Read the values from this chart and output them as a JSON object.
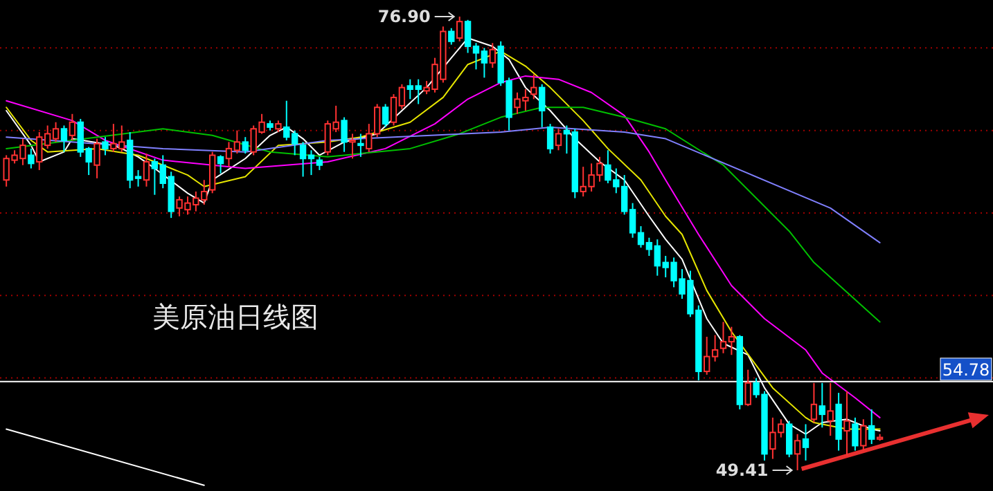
{
  "chart_data": {
    "type": "candlestick",
    "title": "美原油日线图",
    "grid": "y",
    "tick_labels": false,
    "categories": [
      null,
      null,
      null,
      null,
      null,
      null,
      null,
      null,
      null,
      null,
      null,
      null,
      null,
      null,
      null,
      null,
      null,
      null,
      null,
      null,
      null,
      null,
      null,
      null,
      null,
      null,
      null,
      null,
      null,
      null,
      null,
      null,
      null,
      null,
      null,
      null,
      null,
      null,
      null,
      null,
      null,
      null,
      null,
      null,
      null,
      null,
      null,
      null,
      null,
      null,
      null,
      null,
      null,
      null,
      null,
      null,
      null,
      null,
      null,
      null,
      null,
      null,
      null,
      null,
      null,
      null,
      null,
      null,
      null,
      null,
      null,
      null,
      null,
      null,
      null,
      null,
      null,
      null,
      null,
      null,
      null,
      null,
      null,
      null,
      null,
      null,
      null,
      null,
      null,
      null,
      null,
      null,
      null,
      null,
      null,
      null,
      null,
      null,
      null,
      null,
      null,
      null,
      null,
      null,
      null,
      null,
      null
    ],
    "ohlc": [
      [
        67.0,
        68.5,
        66.6,
        68.3
      ],
      [
        68.2,
        68.8,
        68.0,
        68.5
      ],
      [
        68.3,
        69.5,
        67.9,
        69.1
      ],
      [
        68.5,
        68.9,
        67.7,
        68.0
      ],
      [
        68.1,
        69.9,
        67.6,
        69.6
      ],
      [
        69.1,
        70.3,
        68.9,
        69.8
      ],
      [
        69.5,
        70.5,
        69.3,
        70.1
      ],
      [
        70.1,
        70.3,
        68.7,
        69.4
      ],
      [
        69.7,
        71.0,
        69.4,
        70.5
      ],
      [
        70.5,
        70.7,
        68.4,
        68.7
      ],
      [
        68.9,
        69.0,
        67.3,
        68.1
      ],
      [
        67.9,
        69.5,
        67.1,
        69.2
      ],
      [
        69.3,
        69.6,
        68.5,
        68.9
      ],
      [
        68.9,
        70.4,
        68.7,
        69.2
      ],
      [
        68.9,
        70.3,
        68.7,
        69.3
      ],
      [
        69.4,
        69.9,
        66.5,
        67.0
      ],
      [
        67.2,
        67.6,
        66.6,
        67.1
      ],
      [
        67.0,
        68.6,
        66.6,
        68.1
      ],
      [
        68.1,
        68.3,
        66.1,
        67.7
      ],
      [
        67.9,
        68.5,
        66.5,
        66.8
      ],
      [
        67.2,
        67.5,
        64.7,
        65.1
      ],
      [
        65.3,
        66.0,
        64.8,
        65.8
      ],
      [
        65.2,
        66.0,
        64.9,
        65.6
      ],
      [
        65.5,
        66.3,
        65.1,
        65.9
      ],
      [
        65.8,
        67.0,
        65.5,
        66.3
      ],
      [
        66.4,
        68.7,
        66.2,
        68.5
      ],
      [
        68.4,
        68.5,
        67.4,
        68.0
      ],
      [
        68.3,
        69.3,
        67.8,
        68.9
      ],
      [
        68.8,
        70.0,
        68.6,
        69.3
      ],
      [
        69.3,
        69.6,
        68.6,
        68.8
      ],
      [
        68.7,
        70.3,
        68.5,
        70.1
      ],
      [
        69.9,
        71.0,
        69.8,
        70.5
      ],
      [
        70.4,
        70.6,
        70.0,
        70.2
      ],
      [
        70.1,
        70.6,
        69.9,
        70.4
      ],
      [
        70.2,
        71.8,
        69.4,
        69.6
      ],
      [
        69.8,
        70.0,
        68.5,
        69.2
      ],
      [
        69.1,
        69.3,
        67.2,
        68.3
      ],
      [
        68.5,
        68.8,
        67.3,
        68.3
      ],
      [
        68.2,
        68.4,
        67.6,
        67.9
      ],
      [
        68.7,
        70.6,
        68.5,
        70.4
      ],
      [
        70.1,
        71.5,
        69.9,
        70.5
      ],
      [
        70.6,
        70.8,
        68.7,
        69.3
      ],
      [
        69.3,
        69.8,
        68.3,
        69.4
      ],
      [
        69.2,
        69.8,
        68.4,
        69.1
      ],
      [
        68.9,
        70.4,
        68.7,
        69.8
      ],
      [
        69.8,
        71.6,
        69.6,
        71.4
      ],
      [
        71.4,
        71.6,
        70.2,
        70.4
      ],
      [
        70.5,
        72.2,
        70.3,
        72.0
      ],
      [
        71.5,
        72.8,
        71.3,
        72.6
      ],
      [
        72.7,
        73.1,
        71.9,
        72.5
      ],
      [
        72.7,
        73.1,
        71.6,
        72.5
      ],
      [
        72.4,
        73.0,
        72.2,
        72.6
      ],
      [
        72.5,
        74.4,
        72.3,
        74.0
      ],
      [
        73.1,
        76.3,
        72.9,
        76.0
      ],
      [
        76.0,
        76.2,
        75.2,
        75.4
      ],
      [
        75.6,
        76.9,
        75.4,
        76.6
      ],
      [
        76.6,
        76.7,
        74.7,
        75.1
      ],
      [
        75.1,
        75.3,
        73.7,
        74.7
      ],
      [
        74.8,
        75.0,
        73.2,
        74.1
      ],
      [
        74.1,
        75.3,
        73.8,
        74.9
      ],
      [
        75.1,
        75.4,
        72.7,
        72.9
      ],
      [
        73.0,
        73.2,
        70.0,
        70.8
      ],
      [
        71.4,
        72.3,
        71.0,
        71.9
      ],
      [
        71.8,
        72.5,
        71.2,
        72.0
      ],
      [
        72.2,
        73.4,
        71.9,
        72.6
      ],
      [
        72.6,
        72.8,
        70.2,
        71.2
      ],
      [
        70.2,
        70.4,
        68.6,
        68.9
      ],
      [
        69.1,
        70.1,
        68.8,
        69.8
      ],
      [
        70.0,
        70.3,
        68.6,
        69.8
      ],
      [
        69.9,
        70.1,
        65.9,
        66.3
      ],
      [
        66.3,
        67.8,
        66.0,
        66.6
      ],
      [
        66.6,
        68.0,
        66.3,
        67.3
      ],
      [
        67.3,
        68.4,
        66.9,
        68.0
      ],
      [
        67.9,
        68.8,
        66.8,
        67.0
      ],
      [
        67.0,
        67.7,
        66.2,
        66.6
      ],
      [
        66.6,
        67.3,
        64.9,
        65.1
      ],
      [
        65.2,
        65.6,
        63.5,
        63.8
      ],
      [
        63.8,
        64.2,
        62.9,
        63.1
      ],
      [
        63.2,
        63.5,
        62.4,
        62.8
      ],
      [
        63.0,
        63.4,
        61.2,
        61.8
      ],
      [
        62.0,
        62.4,
        61.1,
        61.7
      ],
      [
        62.0,
        62.3,
        60.5,
        60.9
      ],
      [
        61.0,
        61.6,
        59.8,
        60.1
      ],
      [
        60.9,
        61.5,
        58.7,
        58.9
      ],
      [
        59.1,
        59.4,
        54.86,
        55.4
      ],
      [
        55.4,
        57.5,
        55.2,
        56.3
      ],
      [
        56.3,
        57.6,
        56.0,
        56.7
      ],
      [
        56.8,
        58.4,
        56.5,
        57.2
      ],
      [
        57.2,
        58.1,
        56.4,
        57.5
      ],
      [
        57.5,
        57.6,
        53.1,
        53.4
      ],
      [
        53.4,
        55.5,
        53.3,
        54.7
      ],
      [
        54.7,
        55.0,
        53.8,
        54.0
      ],
      [
        54.0,
        54.2,
        50.0,
        50.4
      ],
      [
        50.7,
        52.6,
        50.1,
        51.7
      ],
      [
        51.7,
        52.5,
        51.4,
        52.2
      ],
      [
        52.2,
        52.4,
        50.2,
        50.4
      ],
      [
        50.4,
        51.6,
        49.41,
        51.2
      ],
      [
        51.3,
        52.2,
        50.0,
        50.8
      ],
      [
        52.5,
        54.7,
        52.3,
        53.4
      ],
      [
        53.3,
        54.7,
        52.0,
        52.8
      ],
      [
        52.4,
        54.7,
        51.5,
        53.0
      ],
      [
        53.4,
        54.1,
        50.6,
        51.3
      ],
      [
        51.8,
        54.2,
        50.3,
        52.4
      ],
      [
        52.2,
        52.6,
        50.6,
        50.9
      ],
      [
        50.9,
        52.5,
        50.6,
        52.1
      ],
      [
        52.1,
        53.1,
        51.0,
        51.3
      ],
      [
        51.3,
        51.6,
        51.2,
        51.4
      ]
    ],
    "colors": [
      "#ff3232",
      "#ff3232",
      "#ff3232",
      "#00ffff",
      "#ff3232",
      "#ff3232",
      "#ff3232",
      "#00ffff",
      "#ff3232",
      "#00ffff",
      "#00ffff",
      "#ff3232",
      "#00ffff",
      "#ff3232",
      "#ff3232",
      "#00ffff",
      "#00ffff",
      "#ff3232",
      "#00ffff",
      "#00ffff",
      "#00ffff",
      "#ff3232",
      "#ff3232",
      "#ff3232",
      "#ff3232",
      "#ff3232",
      "#00ffff",
      "#ff3232",
      "#ff3232",
      "#00ffff",
      "#ff3232",
      "#ff3232",
      "#00ffff",
      "#ff3232",
      "#00ffff",
      "#00ffff",
      "#00ffff",
      "#00ffff",
      "#00ffff",
      "#ff3232",
      "#ff3232",
      "#00ffff",
      "#ff3232",
      "#00ffff",
      "#ff3232",
      "#ff3232",
      "#00ffff",
      "#ff3232",
      "#ff3232",
      "#00ffff",
      "#00ffff",
      "#ff3232",
      "#ff3232",
      "#ff3232",
      "#00ffff",
      "#ff3232",
      "#00ffff",
      "#00ffff",
      "#00ffff",
      "#ff3232",
      "#00ffff",
      "#00ffff",
      "#ff3232",
      "#ff3232",
      "#ff3232",
      "#00ffff",
      "#00ffff",
      "#ff3232",
      "#00ffff",
      "#00ffff",
      "#ff3232",
      "#ff3232",
      "#ff3232",
      "#00ffff",
      "#00ffff",
      "#00ffff",
      "#00ffff",
      "#00ffff",
      "#00ffff",
      "#00ffff",
      "#00ffff",
      "#00ffff",
      "#00ffff",
      "#00ffff",
      "#00ffff",
      "#ff3232",
      "#ff3232",
      "#ff3232",
      "#ff3232",
      "#00ffff",
      "#ff3232",
      "#00ffff",
      "#00ffff",
      "#ff3232",
      "#ff3232",
      "#00ffff",
      "#ff3232",
      "#00ffff",
      "#ff3232",
      "#00ffff",
      "#ff3232",
      "#00ffff",
      "#ff3232",
      "#00ffff",
      "#ff3232",
      "#00ffff",
      "#ff3232"
    ],
    "series": [
      {
        "type": "line",
        "color": "#ffffff",
        "values": [
          71.2,
          null,
          null,
          69.1,
          68.1,
          null,
          null,
          68.7,
          69.5,
          null,
          null,
          null,
          null,
          69.1,
          68.9,
          null,
          68.4,
          null,
          67.7,
          null,
          null,
          null,
          66.2,
          null,
          65.6,
          67.0,
          null,
          null,
          null,
          68.3,
          null,
          null,
          69.7,
          null,
          70.2,
          null,
          69.5,
          null,
          68.5,
          null,
          null,
          69.3,
          null,
          null,
          null,
          69.8,
          null,
          null,
          71.2,
          null,
          null,
          72.6,
          null,
          null,
          74.4,
          null,
          75.6,
          null,
          null,
          75.1,
          null,
          74.3,
          null,
          72.6,
          null,
          null,
          71.2,
          null,
          null,
          69.5,
          null,
          null,
          68.1,
          null,
          null,
          67.0,
          null,
          null,
          64.8,
          null,
          63.4,
          null,
          62.2,
          null,
          null,
          58.6,
          null,
          57.1,
          null,
          null,
          56.4,
          null,
          54.4,
          null,
          null,
          52.2,
          null,
          51.6,
          null,
          52.3,
          null,
          null,
          52.5,
          null,
          null,
          51.9,
          51.8
        ]
      },
      {
        "type": "line",
        "color": "#e6e600",
        "values": [
          71.4,
          null,
          null,
          69.4,
          null,
          68.7,
          null,
          null,
          null,
          null,
          null,
          68.9,
          null,
          null,
          null,
          null,
          68.5,
          null,
          null,
          67.9,
          null,
          null,
          67.3,
          null,
          66.6,
          null,
          null,
          null,
          null,
          67.2,
          null,
          null,
          null,
          69.1,
          null,
          null,
          null,
          null,
          null,
          69.3,
          null,
          null,
          null,
          69.6,
          null,
          null,
          null,
          null,
          null,
          70.5,
          null,
          null,
          null,
          72.0,
          null,
          null,
          74.0,
          null,
          null,
          null,
          74.8,
          null,
          null,
          73.9,
          null,
          null,
          72.6,
          null,
          null,
          null,
          70.6,
          null,
          null,
          68.9,
          null,
          null,
          null,
          67.0,
          null,
          null,
          64.8,
          null,
          63.7,
          null,
          null,
          60.3,
          null,
          null,
          57.8,
          null,
          null,
          null,
          null,
          54.4,
          null,
          null,
          null,
          52.6,
          52.3,
          null,
          null,
          null,
          51.9,
          null,
          null,
          null,
          51.9
        ]
      },
      {
        "type": "line",
        "color": "#ff00ff",
        "values": [
          71.8,
          null,
          null,
          null,
          null,
          null,
          null,
          null,
          70.6,
          null,
          null,
          null,
          69.4,
          null,
          null,
          null,
          null,
          null,
          null,
          68.2,
          null,
          null,
          null,
          null,
          null,
          null,
          null,
          null,
          null,
          67.7,
          null,
          null,
          null,
          null,
          null,
          null,
          null,
          null,
          null,
          68.1,
          null,
          null,
          null,
          null,
          null,
          null,
          68.9,
          null,
          null,
          null,
          null,
          null,
          70.4,
          null,
          null,
          null,
          71.9,
          null,
          null,
          null,
          72.9,
          null,
          null,
          73.3,
          null,
          null,
          null,
          73.1,
          null,
          null,
          null,
          72.3,
          null,
          null,
          null,
          70.9,
          null,
          null,
          68.7,
          null,
          67.0,
          null,
          null,
          null,
          63.7,
          null,
          null,
          null,
          60.6,
          null,
          null,
          null,
          58.6,
          null,
          null,
          null,
          null,
          56.7,
          null,
          55.3,
          null,
          null,
          null,
          53.8,
          null,
          null,
          52.6
        ]
      },
      {
        "type": "line",
        "color": "#00c000",
        "values": [
          68.9,
          null,
          null,
          null,
          null,
          null,
          null,
          null,
          null,
          null,
          null,
          null,
          null,
          null,
          null,
          null,
          null,
          null,
          null,
          70.1,
          null,
          null,
          null,
          null,
          null,
          69.7,
          null,
          null,
          null,
          null,
          null,
          null,
          68.7,
          null,
          null,
          null,
          null,
          null,
          null,
          68.4,
          null,
          null,
          null,
          null,
          null,
          null,
          null,
          null,
          null,
          68.9,
          null,
          null,
          null,
          null,
          null,
          69.8,
          null,
          null,
          null,
          null,
          70.8,
          null,
          null,
          null,
          null,
          71.4,
          null,
          null,
          null,
          null,
          71.4,
          null,
          null,
          null,
          null,
          70.8,
          null,
          null,
          null,
          null,
          70.1,
          null,
          null,
          null,
          null,
          null,
          null,
          67.9,
          null,
          null,
          null,
          65.9,
          null,
          null,
          null,
          63.9,
          null,
          null,
          62.0,
          null,
          null,
          null,
          null,
          null,
          null,
          null,
          58.4
        ]
      },
      {
        "type": "line",
        "color": "#8080ff",
        "values": [
          69.6,
          null,
          null,
          null,
          null,
          null,
          null,
          null,
          null,
          null,
          null,
          null,
          null,
          null,
          null,
          null,
          null,
          null,
          null,
          68.9,
          null,
          null,
          null,
          null,
          null,
          null,
          null,
          null,
          null,
          68.7,
          null,
          null,
          null,
          null,
          null,
          null,
          null,
          null,
          null,
          69.4,
          null,
          null,
          null,
          69.5,
          null,
          null,
          null,
          null,
          null,
          null,
          null,
          null,
          null,
          null,
          null,
          null,
          null,
          null,
          null,
          null,
          69.9,
          null,
          null,
          null,
          null,
          null,
          70.2,
          null,
          null,
          null,
          null,
          null,
          null,
          null,
          null,
          69.9,
          null,
          null,
          null,
          null,
          69.5,
          null,
          null,
          null,
          null,
          null,
          null,
          null,
          null,
          null,
          67.4,
          null,
          null,
          null,
          null,
          null,
          null,
          null,
          null,
          null,
          65.3,
          null,
          null,
          null,
          null,
          null,
          63.2
        ]
      },
      {
        "type": "line",
        "color": "#ffffff",
        "values": [
          51.9,
          null,
          null,
          null,
          null,
          null,
          null,
          null,
          null,
          null,
          null,
          null,
          null,
          null,
          null,
          null,
          null,
          null,
          null,
          null,
          null,
          null,
          null,
          null,
          48.5,
          null,
          null,
          null,
          null,
          null,
          null,
          null,
          null,
          null,
          null,
          null,
          null,
          null,
          null,
          null,
          null,
          null,
          null,
          null,
          null,
          null,
          null,
          null,
          null,
          null,
          null,
          null,
          null,
          null,
          null,
          null,
          null,
          null,
          null,
          null,
          null,
          null,
          null,
          null,
          null,
          null,
          null,
          null,
          null,
          null,
          null,
          null,
          null,
          null,
          null,
          null,
          null,
          null,
          null,
          null,
          null,
          null,
          null,
          null,
          null,
          null,
          null,
          null,
          null,
          null,
          null,
          null,
          null,
          null,
          null,
          null,
          null,
          null,
          null,
          null,
          null,
          null,
          null,
          null,
          null,
          null,
          null
        ]
      }
    ],
    "yticks": [
      {
        "value": 75,
        "label": null
      },
      {
        "value": 70,
        "label": null
      },
      {
        "value": 65,
        "label": null
      },
      {
        "value": 60,
        "label": null
      },
      {
        "value": 55,
        "label": null
      }
    ],
    "ref_lines": [
      {
        "axis": "y",
        "value": 54.78,
        "label": "54.78",
        "color": "#ffffff"
      }
    ],
    "annotations": [
      "76.90",
      "49.41"
    ]
  }
}
